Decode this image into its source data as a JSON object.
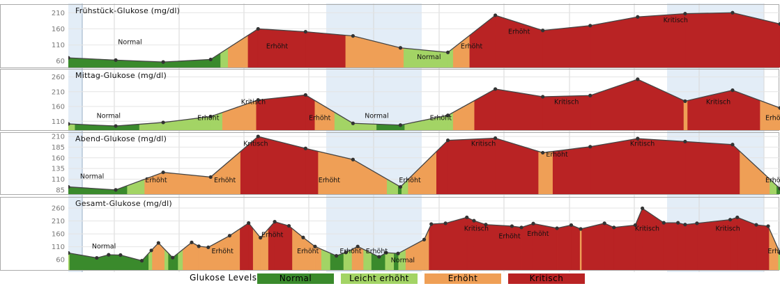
{
  "colors": {
    "Normal": "#3a8a2c",
    "Leicht erhöht": "#a3d465",
    "Erhöht": "#ef9f56",
    "Kritisch": "#b92324",
    "line": "#444444",
    "grid": "#d7d7d7",
    "band": "#e3edf7",
    "border": "#aaaaaa",
    "tick": "#777777"
  },
  "legend": {
    "title": "Glukose Levels:",
    "items": [
      {
        "label": "Normal",
        "color": "#3a8a2c"
      },
      {
        "label": "Leicht erhöht",
        "color": "#a3d465"
      },
      {
        "label": "Erhöht",
        "color": "#ef9f56"
      },
      {
        "label": "Kritisch",
        "color": "#b92324"
      }
    ]
  },
  "chart_data": [
    {
      "type": "area",
      "title": "Frühstück-Glukose (mg/dl)",
      "ylim": [
        40,
        230
      ],
      "yticks": [
        60,
        110,
        160,
        210
      ],
      "thresholds": [
        85,
        100,
        140
      ],
      "x": [
        0,
        1,
        2,
        3,
        4,
        5,
        6,
        7,
        8,
        9,
        10,
        11,
        12,
        13,
        14,
        15
      ],
      "y": [
        70,
        63,
        57,
        65,
        160,
        151,
        138,
        101,
        87,
        202,
        155,
        170,
        197,
        207,
        210,
        175
      ],
      "region_labels": [
        {
          "text": "Normal",
          "x": 1.3,
          "y": 112
        },
        {
          "text": "Erhöht",
          "x": 4.4,
          "y": 99
        },
        {
          "text": "Normal",
          "x": 7.6,
          "y": 66
        },
        {
          "text": "Erhöht",
          "x": 8.5,
          "y": 99
        },
        {
          "text": "Erhöht",
          "x": 9.5,
          "y": 145
        },
        {
          "text": "Kritisch",
          "x": 12.8,
          "y": 180
        }
      ]
    },
    {
      "type": "area",
      "title": "Mittag-Glukose (mg/dl)",
      "ylim": [
        80,
        280
      ],
      "yticks": [
        110,
        160,
        210,
        260
      ],
      "thresholds": [
        100,
        140,
        180
      ],
      "x": [
        0,
        1,
        2,
        3,
        4,
        5,
        6,
        7,
        8,
        9,
        10,
        11,
        12,
        13,
        14,
        15
      ],
      "y": [
        101,
        94,
        106,
        126,
        182,
        199,
        103,
        97,
        130,
        219,
        193,
        197,
        252,
        178,
        215,
        155
      ],
      "region_labels": [
        {
          "text": "Normal",
          "x": 0.85,
          "y": 121
        },
        {
          "text": "Erhöht",
          "x": 2.95,
          "y": 114
        },
        {
          "text": "Kritisch",
          "x": 3.9,
          "y": 168
        },
        {
          "text": "Erhöht",
          "x": 5.3,
          "y": 114
        },
        {
          "text": "Normal",
          "x": 6.5,
          "y": 121
        },
        {
          "text": "Erhöht",
          "x": 7.85,
          "y": 114
        },
        {
          "text": "Kritisch",
          "x": 10.5,
          "y": 168
        },
        {
          "text": "Kritisch",
          "x": 13.7,
          "y": 168
        },
        {
          "text": "Erhö",
          "x": 14.85,
          "y": 114
        }
      ]
    },
    {
      "type": "area",
      "title": "Abend-Glukose (mg/dl)",
      "ylim": [
        75,
        215
      ],
      "yticks": [
        85,
        110,
        135,
        160,
        185,
        210
      ],
      "thresholds": [
        95,
        110,
        175
      ],
      "x": [
        0,
        1,
        2,
        3,
        4,
        5,
        6,
        7,
        8,
        9,
        10,
        11,
        12,
        13,
        14,
        15
      ],
      "y": [
        92,
        85,
        126,
        115,
        210,
        182,
        156,
        92,
        201,
        206,
        172,
        186,
        205,
        198,
        191,
        88
      ],
      "region_labels": [
        {
          "text": "Normal",
          "x": 0.5,
          "y": 112
        },
        {
          "text": "Erhöht",
          "x": 1.85,
          "y": 103
        },
        {
          "text": "Erhöht",
          "x": 3.3,
          "y": 103
        },
        {
          "text": "Kritisch",
          "x": 3.95,
          "y": 188
        },
        {
          "text": "Erhöht",
          "x": 5.5,
          "y": 103
        },
        {
          "text": "Erhöht",
          "x": 7.2,
          "y": 103
        },
        {
          "text": "Kritisch",
          "x": 8.75,
          "y": 188
        },
        {
          "text": "Erhöht",
          "x": 10.3,
          "y": 163
        },
        {
          "text": "Kritisch",
          "x": 12.1,
          "y": 188
        },
        {
          "text": "Erhö",
          "x": 14.85,
          "y": 103
        }
      ]
    },
    {
      "type": "area",
      "title": "Gesamt-Glukose (mg/dl)",
      "ylim": [
        20,
        295
      ],
      "yticks": [
        60,
        110,
        160,
        210,
        260
      ],
      "thresholds": [
        85,
        100,
        180
      ],
      "x": [
        0,
        0.6,
        0.85,
        1.1,
        1.55,
        1.75,
        1.9,
        2.2,
        2.6,
        2.75,
        2.95,
        3.4,
        3.8,
        4.05,
        4.35,
        4.65,
        4.95,
        5.2,
        5.65,
        5.85,
        6.1,
        6.55,
        6.7,
        6.95,
        7.5,
        7.65,
        7.95,
        8.4,
        8.55,
        8.8,
        9.35,
        9.55,
        9.8,
        10.3,
        10.6,
        10.8,
        11.3,
        11.5,
        11.95,
        12.1,
        12.55,
        12.85,
        13,
        13.25,
        13.95,
        14.1,
        14.5,
        14.75,
        15
      ],
      "y": [
        86,
        67,
        79,
        78,
        56,
        96,
        125,
        68,
        127,
        112,
        108,
        153,
        202,
        145,
        207,
        191,
        146,
        111,
        75,
        88,
        111,
        71,
        87,
        84,
        138,
        198,
        201,
        224,
        211,
        196,
        190,
        185,
        200,
        182,
        194,
        179,
        201,
        185,
        194,
        259,
        203,
        203,
        196,
        201,
        215,
        224,
        195,
        190,
        86
      ],
      "region_labels": [
        {
          "text": "Normal",
          "x": 0.75,
          "y": 104
        },
        {
          "text": "Erhöht",
          "x": 3.25,
          "y": 85
        },
        {
          "text": "Erhöht",
          "x": 4.3,
          "y": 148
        },
        {
          "text": "Erhöht",
          "x": 5.05,
          "y": 85
        },
        {
          "text": "Erhöht",
          "x": 5.95,
          "y": 85
        },
        {
          "text": "Erhöht",
          "x": 6.5,
          "y": 85
        },
        {
          "text": "Normal",
          "x": 7.05,
          "y": 49
        },
        {
          "text": "Kritisch",
          "x": 8.6,
          "y": 172
        },
        {
          "text": "Erhöht",
          "x": 9.3,
          "y": 142
        },
        {
          "text": "Erhöht",
          "x": 9.9,
          "y": 152
        },
        {
          "text": "Kritisch",
          "x": 12.2,
          "y": 172
        },
        {
          "text": "Kritisch",
          "x": 13.9,
          "y": 172
        },
        {
          "text": "Erhö",
          "x": 14.9,
          "y": 85
        }
      ]
    }
  ]
}
